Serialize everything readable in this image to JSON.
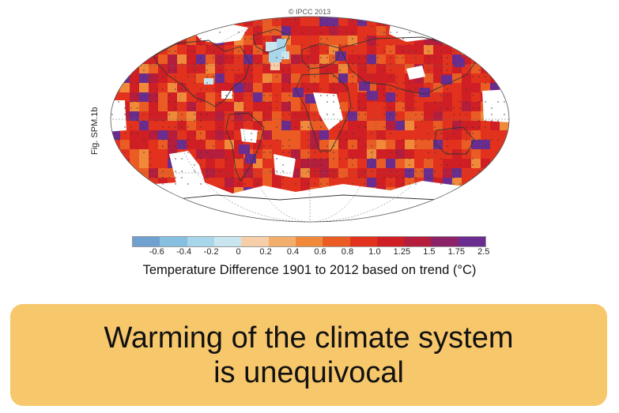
{
  "copyright": "© IPCC 2013",
  "figure_label": "Fig. SPM.1b",
  "legend": {
    "title": "Temperature Difference 1901 to 2012 based on trend (°C)",
    "ticks": [
      "-0.6",
      "-0.4",
      "-0.2",
      "0",
      "0.2",
      "0.4",
      "0.6",
      "0.8",
      "1.0",
      "1.25",
      "1.5",
      "1.75",
      "2.5"
    ],
    "colors": [
      "#6fa0d0",
      "#86bfe0",
      "#a8d6ea",
      "#c9e5ef",
      "#f6cfa8",
      "#f4ae6c",
      "#f08a3a",
      "#ea5c24",
      "#e2321e",
      "#cf1f24",
      "#b51d3d",
      "#8c2268",
      "#6a2d8f"
    ]
  },
  "map": {
    "projection": "robinson",
    "no_data_color": "#ffffff",
    "land_outline_color": "#333333"
  },
  "banner": {
    "line1": "Warming of the climate system",
    "line2": "is unequivocal"
  }
}
